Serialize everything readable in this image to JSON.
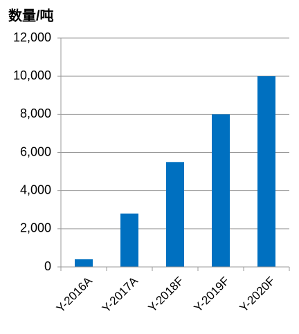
{
  "chart_data": {
    "type": "bar",
    "title": "数量/吨",
    "categories": [
      "Y-2016A",
      "Y-2017A",
      "Y-2018F",
      "Y-2019F",
      "Y-2020F"
    ],
    "values": [
      400,
      2800,
      5500,
      8000,
      10000
    ],
    "color": "#0070c0",
    "ylim": [
      0,
      12000
    ],
    "yticks": [
      0,
      {
        "value": 2000,
        "label": "2,000"
      },
      {
        "value": 4000,
        "label": "4,000"
      },
      {
        "value": 6000,
        "label": "6,000"
      },
      {
        "value": 8000,
        "label": "8,000"
      },
      {
        "value": 10000,
        "label": "10,000"
      },
      {
        "value": 12000,
        "label": "12,000"
      }
    ],
    "grid": true
  }
}
